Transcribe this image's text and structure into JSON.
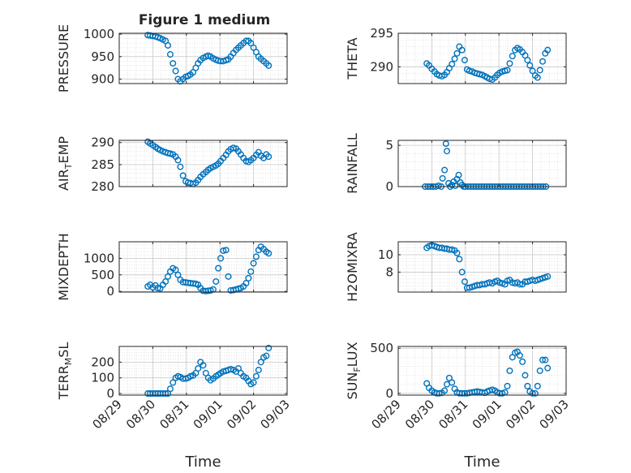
{
  "figure": {
    "title": "Figure 1 medium"
  },
  "colors": {
    "marker": "#0072BD",
    "axis": "#262626",
    "grid": "#d9d9d9",
    "background": "#ffffff"
  },
  "chart_data": [
    {
      "type": "scatter",
      "marker": "circle",
      "grid": true,
      "ylabel": "PRESSURE",
      "ylabel_sub": "",
      "ylabel_tail": "",
      "xlim": [
        "08/29",
        "09/03"
      ],
      "xticks": [
        "08/29",
        "08/30",
        "08/31",
        "09/01",
        "09/02",
        "09/03"
      ],
      "ylim": [
        890,
        1002
      ],
      "yticks": [
        900,
        950,
        1000
      ],
      "x": [
        0.85,
        0.92,
        1.0,
        1.08,
        1.15,
        1.22,
        1.3,
        1.38,
        1.45,
        1.52,
        1.6,
        1.68,
        1.75,
        1.82,
        1.9,
        1.98,
        2.05,
        2.12,
        2.2,
        2.28,
        2.35,
        2.42,
        2.5,
        2.58,
        2.65,
        2.72,
        2.8,
        2.88,
        2.95,
        3.02,
        3.1,
        3.18,
        3.25,
        3.32,
        3.4,
        3.48,
        3.55,
        3.62,
        3.7,
        3.78,
        3.85,
        3.92,
        4.0,
        4.08,
        4.15,
        4.22,
        4.3,
        4.38,
        4.45
      ],
      "y": [
        998,
        997,
        996,
        995,
        993,
        991,
        988,
        985,
        975,
        955,
        935,
        918,
        900,
        895,
        900,
        905,
        907,
        910,
        915,
        925,
        935,
        942,
        947,
        950,
        952,
        950,
        946,
        943,
        941,
        940,
        940,
        942,
        944,
        950,
        958,
        965,
        970,
        975,
        980,
        985,
        985,
        980,
        970,
        960,
        950,
        945,
        940,
        935,
        930
      ]
    },
    {
      "type": "scatter",
      "marker": "circle",
      "grid": true,
      "ylabel": "THETA",
      "ylabel_sub": "",
      "ylabel_tail": "",
      "xlim": [
        "08/29",
        "09/03"
      ],
      "xticks": [
        "08/29",
        "08/30",
        "08/31",
        "09/01",
        "09/02",
        "09/03"
      ],
      "ylim": [
        287.5,
        295
      ],
      "yticks": [
        290,
        295
      ],
      "x": [
        0.85,
        0.92,
        1.0,
        1.08,
        1.15,
        1.22,
        1.3,
        1.38,
        1.45,
        1.52,
        1.6,
        1.68,
        1.75,
        1.82,
        1.9,
        1.98,
        2.05,
        2.12,
        2.2,
        2.28,
        2.35,
        2.42,
        2.5,
        2.58,
        2.65,
        2.72,
        2.8,
        2.88,
        2.95,
        3.02,
        3.1,
        3.18,
        3.25,
        3.32,
        3.4,
        3.48,
        3.55,
        3.62,
        3.7,
        3.78,
        3.85,
        3.92,
        4.0,
        4.08,
        4.15,
        4.22,
        4.3,
        4.38,
        4.45
      ],
      "y": [
        290.5,
        290.2,
        289.7,
        289.3,
        288.9,
        288.7,
        288.6,
        288.8,
        289.2,
        289.8,
        290.4,
        291.2,
        292.0,
        293.0,
        292.5,
        291.0,
        289.6,
        289.4,
        289.3,
        289.1,
        289.0,
        288.9,
        288.8,
        288.6,
        288.4,
        288.2,
        288.1,
        288.4,
        288.8,
        289.1,
        289.3,
        289.4,
        289.5,
        290.5,
        291.6,
        292.5,
        292.8,
        292.6,
        292.2,
        291.7,
        291.0,
        290.2,
        289.4,
        288.7,
        288.4,
        289.5,
        290.8,
        292.0,
        292.5
      ]
    },
    {
      "type": "scatter",
      "marker": "circle",
      "grid": true,
      "ylabel": "AIR",
      "ylabel_sub": "T",
      "ylabel_tail": "EMP",
      "xlim": [
        "08/29",
        "09/03"
      ],
      "xticks": [
        "08/29",
        "08/30",
        "08/31",
        "09/01",
        "09/02",
        "09/03"
      ],
      "ylim": [
        280,
        290.5
      ],
      "yticks": [
        280,
        285,
        290
      ],
      "x": [
        0.85,
        0.92,
        1.0,
        1.08,
        1.15,
        1.22,
        1.3,
        1.38,
        1.45,
        1.52,
        1.6,
        1.68,
        1.75,
        1.82,
        1.9,
        1.98,
        2.05,
        2.12,
        2.2,
        2.28,
        2.35,
        2.42,
        2.5,
        2.58,
        2.65,
        2.72,
        2.8,
        2.88,
        2.95,
        3.02,
        3.1,
        3.18,
        3.25,
        3.32,
        3.4,
        3.48,
        3.55,
        3.62,
        3.7,
        3.78,
        3.85,
        3.92,
        4.0,
        4.08,
        4.15,
        4.22,
        4.3,
        4.38,
        4.45
      ],
      "y": [
        290.2,
        289.8,
        289.4,
        289.0,
        288.6,
        288.3,
        288.0,
        287.8,
        287.6,
        287.5,
        287.3,
        286.8,
        286.0,
        284.5,
        282.5,
        281.2,
        280.9,
        280.8,
        280.6,
        280.9,
        281.5,
        282.2,
        282.8,
        283.3,
        283.8,
        284.2,
        284.5,
        284.8,
        285.2,
        285.8,
        286.5,
        287.2,
        288.0,
        288.5,
        288.8,
        288.6,
        288.0,
        287.3,
        286.5,
        285.8,
        285.6,
        286.0,
        286.5,
        287.2,
        287.8,
        287.0,
        286.5,
        287.3,
        286.8
      ]
    },
    {
      "type": "scatter",
      "marker": "circle",
      "grid": true,
      "ylabel": "RAINFALL",
      "ylabel_sub": "",
      "ylabel_tail": "",
      "xlim": [
        "08/29",
        "09/03"
      ],
      "xticks": [
        "08/29",
        "08/30",
        "08/31",
        "09/01",
        "09/02",
        "09/03"
      ],
      "ylim": [
        0,
        5.6
      ],
      "yticks": [
        0,
        5
      ],
      "x": [
        0.8,
        0.88,
        0.96,
        1.04,
        1.12,
        1.2,
        1.28,
        1.32,
        1.38,
        1.42,
        1.45,
        1.5,
        1.55,
        1.6,
        1.65,
        1.7,
        1.75,
        1.8,
        1.85,
        1.9,
        1.95,
        2.0,
        2.08,
        2.16,
        2.24,
        2.32,
        2.4,
        2.48,
        2.56,
        2.64,
        2.72,
        2.8,
        2.88,
        2.96,
        3.04,
        3.12,
        3.2,
        3.28,
        3.36,
        3.44,
        3.52,
        3.6,
        3.68,
        3.76,
        3.84,
        3.92,
        4.0,
        4.08,
        4.16,
        4.24,
        4.32,
        4.4
      ],
      "y": [
        0,
        0,
        0,
        0,
        0,
        0.1,
        0,
        1.0,
        2.0,
        5.2,
        4.3,
        0.4,
        0,
        0.2,
        0.6,
        0.1,
        0.9,
        1.4,
        0.5,
        0.2,
        0,
        0,
        0,
        0,
        0,
        0,
        0,
        0,
        0,
        0,
        0,
        0,
        0,
        0,
        0,
        0,
        0,
        0,
        0,
        0,
        0,
        0,
        0,
        0,
        0,
        0,
        0,
        0,
        0,
        0,
        0,
        0
      ]
    },
    {
      "type": "scatter",
      "marker": "circle",
      "grid": true,
      "ylabel": "MIXDEPTH",
      "ylabel_sub": "",
      "ylabel_tail": "",
      "xlim": [
        "08/29",
        "09/03"
      ],
      "xticks": [
        "08/29",
        "08/30",
        "08/31",
        "09/01",
        "09/02",
        "09/03"
      ],
      "ylim": [
        -20,
        1500
      ],
      "yticks": [
        0,
        500,
        1000
      ],
      "x": [
        0.85,
        0.92,
        1.0,
        1.08,
        1.15,
        1.22,
        1.3,
        1.38,
        1.45,
        1.52,
        1.6,
        1.68,
        1.75,
        1.82,
        1.9,
        1.98,
        2.05,
        2.12,
        2.2,
        2.28,
        2.35,
        2.42,
        2.5,
        2.58,
        2.65,
        2.72,
        2.8,
        2.88,
        2.95,
        3.02,
        3.1,
        3.18,
        3.25,
        3.32,
        3.4,
        3.48,
        3.55,
        3.62,
        3.7,
        3.78,
        3.85,
        3.92,
        4.0,
        4.08,
        4.15,
        4.22,
        4.3,
        4.38,
        4.45
      ],
      "y": [
        150,
        200,
        120,
        180,
        100,
        90,
        200,
        300,
        450,
        600,
        700,
        650,
        500,
        350,
        280,
        270,
        260,
        250,
        240,
        230,
        200,
        100,
        20,
        10,
        20,
        30,
        60,
        300,
        700,
        1000,
        1230,
        1250,
        450,
        30,
        40,
        60,
        80,
        100,
        150,
        250,
        400,
        600,
        850,
        1050,
        1250,
        1350,
        1280,
        1200,
        1150
      ]
    },
    {
      "type": "scatter",
      "marker": "circle",
      "grid": true,
      "ylabel": "H2OMIXRA",
      "ylabel_sub": "",
      "ylabel_tail": "",
      "xlim": [
        "08/29",
        "09/03"
      ],
      "xticks": [
        "08/29",
        "08/30",
        "08/31",
        "09/01",
        "09/02",
        "09/03"
      ],
      "ylim": [
        5.7,
        11.5
      ],
      "yticks": [
        8,
        10
      ],
      "x": [
        0.85,
        0.92,
        1.0,
        1.08,
        1.15,
        1.22,
        1.3,
        1.38,
        1.45,
        1.52,
        1.6,
        1.68,
        1.75,
        1.82,
        1.9,
        1.98,
        2.05,
        2.12,
        2.2,
        2.28,
        2.35,
        2.42,
        2.5,
        2.58,
        2.65,
        2.72,
        2.8,
        2.88,
        2.95,
        3.02,
        3.1,
        3.18,
        3.25,
        3.32,
        3.4,
        3.48,
        3.55,
        3.62,
        3.7,
        3.78,
        3.85,
        3.92,
        4.0,
        4.08,
        4.15,
        4.22,
        4.3,
        4.38,
        4.45
      ],
      "y": [
        10.8,
        11.0,
        11.1,
        11.0,
        10.9,
        10.8,
        10.8,
        10.7,
        10.7,
        10.6,
        10.6,
        10.5,
        10.2,
        9.5,
        8.0,
        6.9,
        6.2,
        6.2,
        6.3,
        6.4,
        6.5,
        6.5,
        6.6,
        6.6,
        6.7,
        6.8,
        6.7,
        6.9,
        7.0,
        6.8,
        6.7,
        6.6,
        7.0,
        7.1,
        6.8,
        6.7,
        6.8,
        6.6,
        6.6,
        6.9,
        6.9,
        7.0,
        7.1,
        7.0,
        7.1,
        7.2,
        7.3,
        7.4,
        7.5
      ]
    },
    {
      "type": "scatter",
      "marker": "circle",
      "grid": true,
      "ylabel": "TERR",
      "ylabel_sub": "M",
      "ylabel_tail": "SL",
      "xlim": [
        "08/29",
        "09/03"
      ],
      "xticks": [
        "08/29",
        "08/30",
        "08/31",
        "09/01",
        "09/02",
        "09/03"
      ],
      "ylim": [
        -10,
        300
      ],
      "yticks": [
        0,
        100,
        200
      ],
      "x": [
        0.85,
        0.92,
        1.0,
        1.08,
        1.15,
        1.22,
        1.3,
        1.38,
        1.45,
        1.52,
        1.6,
        1.68,
        1.75,
        1.82,
        1.9,
        1.98,
        2.05,
        2.12,
        2.2,
        2.28,
        2.35,
        2.42,
        2.5,
        2.58,
        2.65,
        2.72,
        2.8,
        2.88,
        2.95,
        3.02,
        3.1,
        3.18,
        3.25,
        3.32,
        3.4,
        3.48,
        3.55,
        3.62,
        3.7,
        3.78,
        3.85,
        3.92,
        4.0,
        4.08,
        4.15,
        4.22,
        4.3,
        4.38,
        4.45
      ],
      "y": [
        0,
        0,
        0,
        0,
        0,
        0,
        0,
        0,
        0,
        30,
        70,
        100,
        110,
        105,
        95,
        95,
        100,
        110,
        115,
        130,
        160,
        200,
        180,
        130,
        100,
        85,
        95,
        110,
        120,
        130,
        140,
        145,
        150,
        155,
        150,
        140,
        160,
        130,
        110,
        100,
        80,
        60,
        70,
        110,
        150,
        200,
        230,
        240,
        290
      ]
    },
    {
      "type": "scatter",
      "marker": "circle",
      "grid": true,
      "ylabel": "SUN",
      "ylabel_sub": "F",
      "ylabel_tail": "LUX",
      "xlim": [
        "08/29",
        "09/03"
      ],
      "xticks": [
        "08/29",
        "08/30",
        "08/31",
        "09/01",
        "09/02",
        "09/03"
      ],
      "ylim": [
        -20,
        520
      ],
      "yticks": [
        0,
        500
      ],
      "x": [
        0.85,
        0.92,
        1.0,
        1.08,
        1.15,
        1.22,
        1.3,
        1.38,
        1.45,
        1.52,
        1.6,
        1.68,
        1.75,
        1.82,
        1.9,
        1.98,
        2.05,
        2.12,
        2.2,
        2.28,
        2.35,
        2.42,
        2.5,
        2.58,
        2.65,
        2.72,
        2.8,
        2.88,
        2.95,
        3.02,
        3.1,
        3.18,
        3.25,
        3.32,
        3.4,
        3.48,
        3.55,
        3.62,
        3.7,
        3.78,
        3.85,
        3.92,
        4.0,
        4.08,
        4.15,
        4.22,
        4.3,
        4.38,
        4.45
      ],
      "y": [
        110,
        60,
        30,
        10,
        0,
        0,
        5,
        30,
        100,
        170,
        120,
        50,
        10,
        0,
        0,
        0,
        0,
        5,
        10,
        15,
        20,
        15,
        10,
        5,
        20,
        30,
        40,
        30,
        10,
        0,
        0,
        10,
        80,
        250,
        400,
        450,
        460,
        420,
        350,
        200,
        80,
        20,
        0,
        0,
        80,
        250,
        370,
        370,
        280
      ]
    }
  ],
  "xaxis": {
    "label": "Time",
    "tick_labels": [
      "08/29",
      "08/30",
      "08/31",
      "09/01",
      "09/02",
      "09/03"
    ]
  }
}
